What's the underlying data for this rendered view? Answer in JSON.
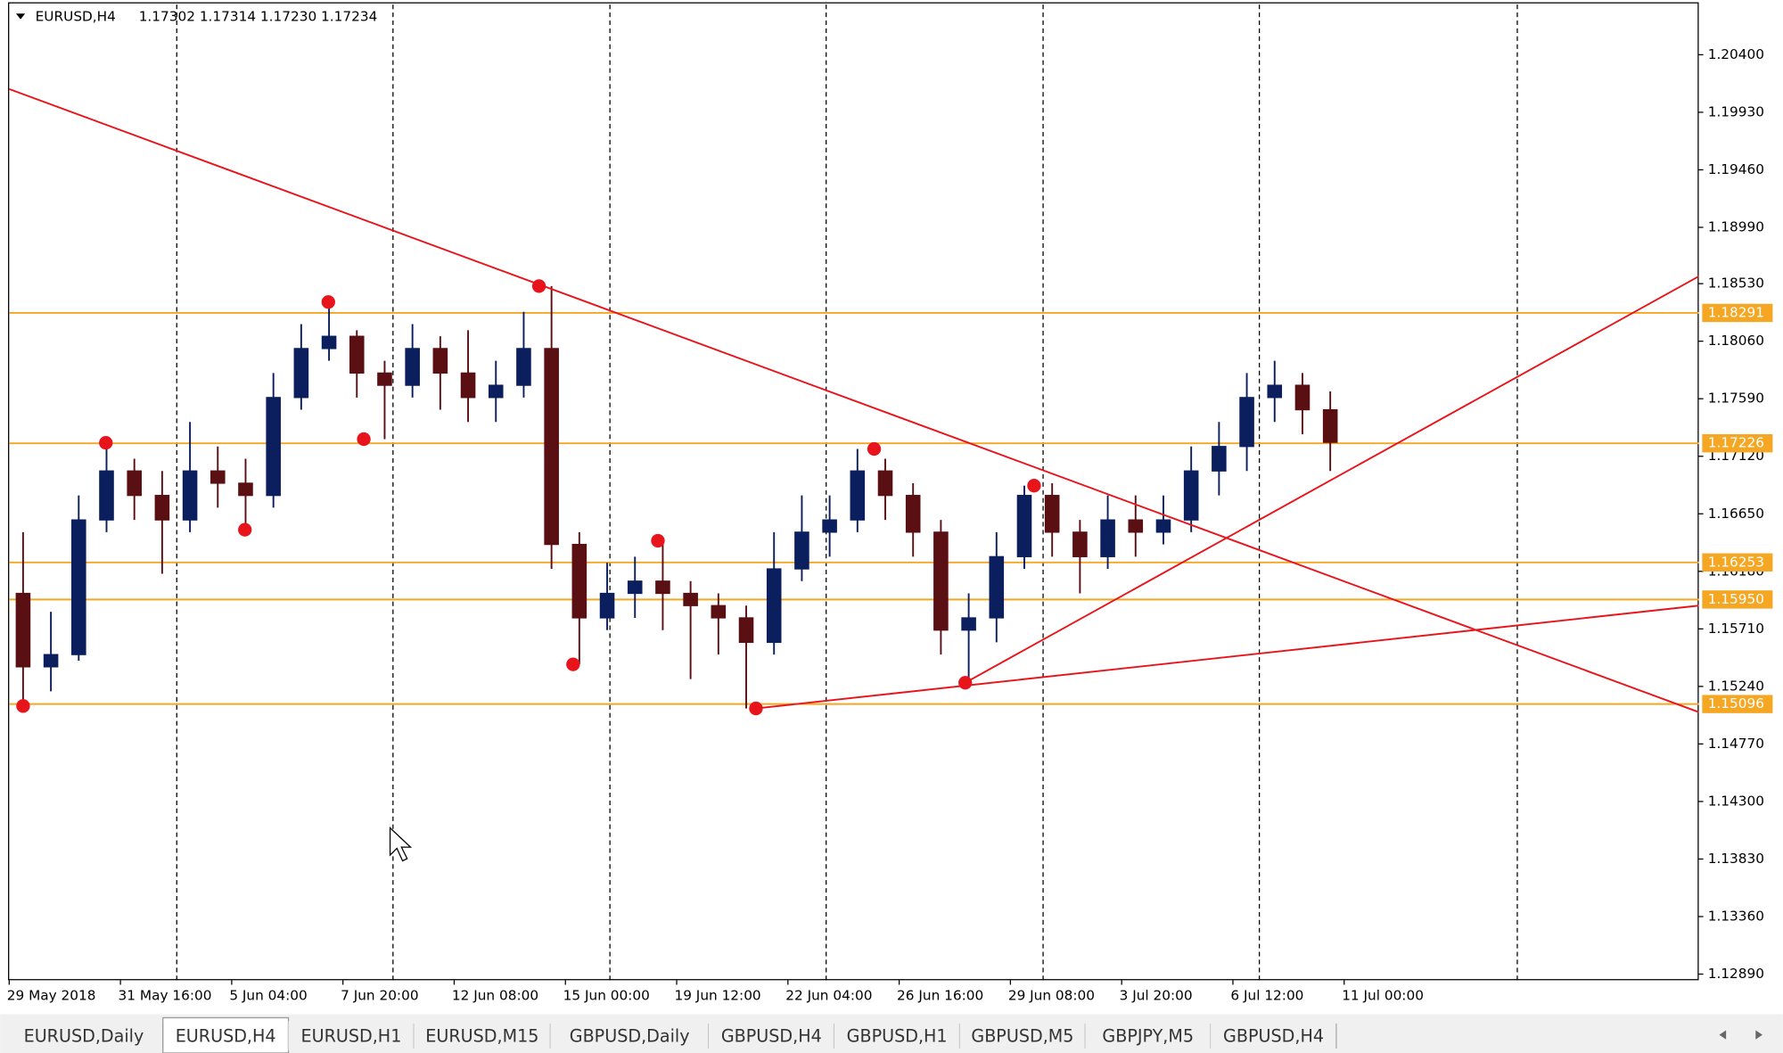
{
  "chart_data": {
    "type": "candlestick",
    "title": "EURUSD,H4",
    "quote": "1.17302 1.17314 1.17230 1.17234",
    "x": [
      2,
      6,
      10,
      14,
      18,
      22,
      26,
      30,
      34,
      38,
      42,
      46,
      50,
      54,
      58,
      62,
      66,
      70,
      74,
      78,
      82,
      86,
      90,
      94,
      98,
      102,
      106,
      110,
      114,
      118,
      122,
      126,
      130,
      134,
      138,
      142,
      146,
      150,
      154,
      158,
      162,
      166,
      170,
      174,
      178,
      182,
      186,
      190
    ],
    "open": [
      1.16,
      1.154,
      1.155,
      1.166,
      1.17,
      1.168,
      1.166,
      1.17,
      1.169,
      1.168,
      1.176,
      1.18,
      1.181,
      1.178,
      1.177,
      1.18,
      1.178,
      1.176,
      1.177,
      1.18,
      1.164,
      1.158,
      1.16,
      1.161,
      1.16,
      1.159,
      1.158,
      1.156,
      1.162,
      1.165,
      1.166,
      1.17,
      1.168,
      1.165,
      1.157,
      1.158,
      1.163,
      1.168,
      1.165,
      1.163,
      1.166,
      1.165,
      1.166,
      1.17,
      1.172,
      1.176,
      1.177,
      1.175
    ],
    "high": [
      1.165,
      1.1585,
      1.168,
      1.1723,
      1.171,
      1.17,
      1.174,
      1.172,
      1.171,
      1.178,
      1.182,
      1.1838,
      1.1815,
      1.179,
      1.182,
      1.181,
      1.1815,
      1.179,
      1.183,
      1.1851,
      1.165,
      1.1625,
      1.163,
      1.1643,
      1.161,
      1.16,
      1.159,
      1.165,
      1.168,
      1.168,
      1.1718,
      1.171,
      1.169,
      1.166,
      1.16,
      1.165,
      1.1688,
      1.169,
      1.166,
      1.168,
      1.168,
      1.168,
      1.172,
      1.174,
      1.178,
      1.179,
      1.178,
      1.1765
    ],
    "low": [
      1.1508,
      1.152,
      1.1545,
      1.165,
      1.166,
      1.1616,
      1.165,
      1.167,
      1.1652,
      1.167,
      1.175,
      1.179,
      1.176,
      1.1726,
      1.176,
      1.175,
      1.174,
      1.174,
      1.176,
      1.162,
      1.1542,
      1.157,
      1.158,
      1.157,
      1.153,
      1.155,
      1.1506,
      1.155,
      1.161,
      1.163,
      1.165,
      1.166,
      1.163,
      1.155,
      1.1527,
      1.156,
      1.162,
      1.163,
      1.16,
      1.162,
      1.163,
      1.164,
      1.165,
      1.168,
      1.17,
      1.174,
      1.173,
      1.17
    ],
    "close": [
      1.154,
      1.155,
      1.166,
      1.17,
      1.168,
      1.166,
      1.17,
      1.169,
      1.168,
      1.176,
      1.18,
      1.181,
      1.178,
      1.177,
      1.18,
      1.178,
      1.176,
      1.177,
      1.18,
      1.164,
      1.158,
      1.16,
      1.161,
      1.16,
      1.159,
      1.158,
      1.156,
      1.162,
      1.165,
      1.166,
      1.17,
      1.168,
      1.165,
      1.157,
      1.158,
      1.163,
      1.168,
      1.165,
      1.163,
      1.166,
      1.165,
      1.166,
      1.17,
      1.172,
      1.176,
      1.177,
      1.175,
      1.17234
    ],
    "up_color": "#0b1f5e",
    "down_color": "#5a0f12",
    "xlim": [
      0,
      243
    ],
    "ylim": [
      1.1284,
      1.2081
    ],
    "xticks": [
      {
        "value": 0,
        "label": "29 May 2018"
      },
      {
        "value": 16,
        "label": "31 May 16:00"
      },
      {
        "value": 32,
        "label": "5 Jun 04:00"
      },
      {
        "value": 48,
        "label": "7 Jun 20:00"
      },
      {
        "value": 64,
        "label": "12 Jun 08:00"
      },
      {
        "value": 80,
        "label": "15 Jun 00:00"
      },
      {
        "value": 96,
        "label": "19 Jun 12:00"
      },
      {
        "value": 112,
        "label": "22 Jun 04:00"
      },
      {
        "value": 128,
        "label": "26 Jun 16:00"
      },
      {
        "value": 144,
        "label": "29 Jun 08:00"
      },
      {
        "value": 160,
        "label": "3 Jul 20:00"
      },
      {
        "value": 176,
        "label": "6 Jul 12:00"
      },
      {
        "value": 192,
        "label": "11 Jul 00:00"
      }
    ],
    "yticks": [
      {
        "value": 1.204,
        "label": "1.20400"
      },
      {
        "value": 1.1993,
        "label": "1.19930"
      },
      {
        "value": 1.1946,
        "label": "1.19460"
      },
      {
        "value": 1.1899,
        "label": "1.18990"
      },
      {
        "value": 1.1853,
        "label": "1.18530"
      },
      {
        "value": 1.1806,
        "label": "1.18060"
      },
      {
        "value": 1.1759,
        "label": "1.17590"
      },
      {
        "value": 1.1712,
        "label": "1.17120"
      },
      {
        "value": 1.1665,
        "label": "1.16650"
      },
      {
        "value": 1.1618,
        "label": "1.16180"
      },
      {
        "value": 1.1571,
        "label": "1.15710"
      },
      {
        "value": 1.1524,
        "label": "1.15240"
      },
      {
        "value": 1.1477,
        "label": "1.14770"
      },
      {
        "value": 1.143,
        "label": "1.14300"
      },
      {
        "value": 1.1383,
        "label": "1.13830"
      },
      {
        "value": 1.1336,
        "label": "1.13360"
      },
      {
        "value": 1.1289,
        "label": "1.12890"
      }
    ],
    "hlines": [
      1.18291,
      1.17226,
      1.16253,
      {
        "value": 1.1595,
        "label": "1.15950"
      },
      1.15096
    ],
    "hline_color": "#f5a623",
    "trendlines": [
      {
        "x": [
          0,
          243
        ],
        "y": [
          1.2012,
          1.1503
        ]
      },
      {
        "x": [
          107.4,
          243
        ],
        "y": [
          1.1506,
          1.159
        ]
      },
      {
        "x": [
          137.5,
          243
        ],
        "y": [
          1.1527,
          1.1859
        ]
      }
    ],
    "trend_color": "#e8141b",
    "pivots": {
      "x": [
        2,
        13.9,
        33.9,
        45.9,
        51,
        76.2,
        81.1,
        93.3,
        107.4,
        124.4,
        137.5,
        147.4
      ],
      "y": [
        1.1508,
        1.1723,
        1.1652,
        1.1838,
        1.1726,
        1.1851,
        1.1542,
        1.1643,
        1.1506,
        1.1718,
        1.1527,
        1.1688
      ]
    },
    "separators": [
      24.1,
      55.2,
      86.4,
      117.5,
      148.7,
      179.8,
      216.9
    ]
  },
  "tabs": {
    "items": [
      "EURUSD,Daily",
      "EURUSD,H4",
      "EURUSD,H1",
      "EURUSD,M15",
      "GBPUSD,Daily",
      "GBPUSD,H4",
      "GBPUSD,H1",
      "GBPUSD,M5",
      "GBPJPY,M5",
      "GBPUSD,H4"
    ],
    "active": 1
  }
}
